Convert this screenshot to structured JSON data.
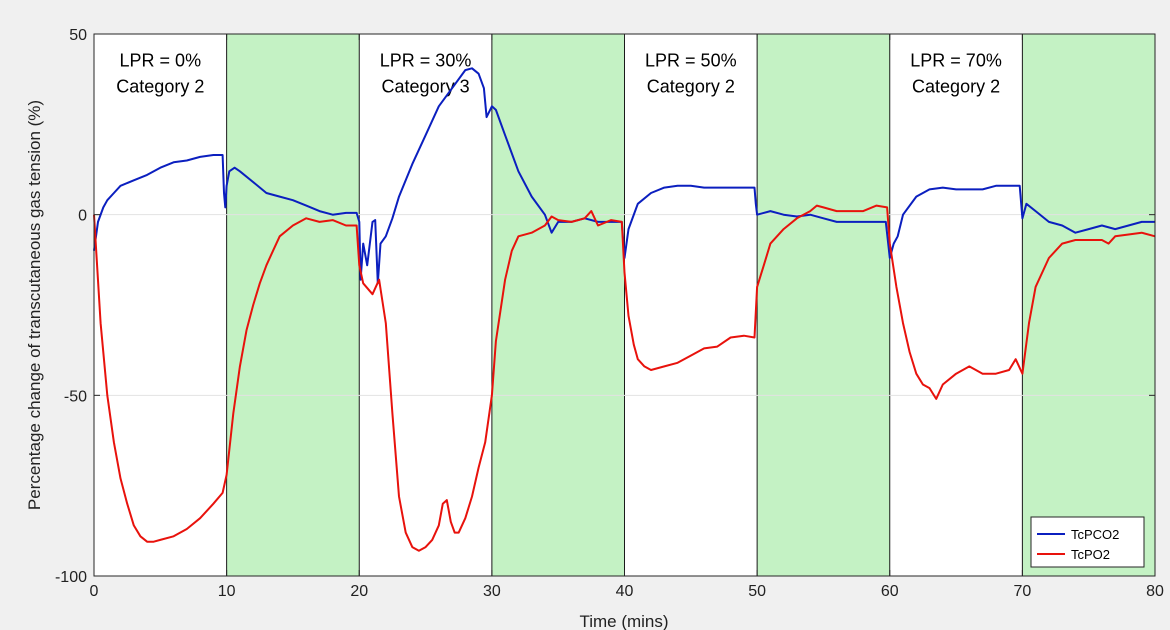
{
  "chart_data": {
    "type": "line",
    "xlabel": "Time (mins)",
    "ylabel": "Percentage change of transcutaneous gas tension (%)",
    "xlim": [
      0,
      80
    ],
    "ylim": [
      -100,
      50
    ],
    "x_ticks": [
      0,
      10,
      20,
      30,
      40,
      50,
      60,
      70,
      80
    ],
    "y_ticks": [
      -100,
      -50,
      0,
      50
    ],
    "grid": "horizontal",
    "legend": "bottom-right",
    "shaded_intervals": [
      [
        10,
        20
      ],
      [
        30,
        40
      ],
      [
        50,
        60
      ],
      [
        70,
        80
      ]
    ],
    "shade_color": "#c4f2c4",
    "annotations": [
      {
        "lines": [
          "LPR = 0%",
          "Category 2"
        ],
        "x": 5,
        "y": 41
      },
      {
        "lines": [
          "LPR = 30%",
          "Category 3"
        ],
        "x": 25,
        "y": 41
      },
      {
        "lines": [
          "LPR = 50%",
          "Category 2"
        ],
        "x": 45,
        "y": 41
      },
      {
        "lines": [
          "LPR = 70%",
          "Category 2"
        ],
        "x": 65,
        "y": 41
      }
    ],
    "series": [
      {
        "name": "TcPCO2",
        "color": "#0b1fbf",
        "points": [
          [
            0,
            -10
          ],
          [
            0.3,
            -2
          ],
          [
            0.7,
            2
          ],
          [
            1,
            4
          ],
          [
            1.5,
            6
          ],
          [
            2,
            8
          ],
          [
            3,
            9.5
          ],
          [
            4,
            11
          ],
          [
            5,
            13
          ],
          [
            6,
            14.5
          ],
          [
            7,
            15
          ],
          [
            8,
            16
          ],
          [
            9,
            16.5
          ],
          [
            9.7,
            16.5
          ],
          [
            9.8,
            6
          ],
          [
            9.9,
            2
          ],
          [
            10,
            8
          ],
          [
            10.2,
            12
          ],
          [
            10.6,
            13
          ],
          [
            11,
            12
          ],
          [
            12,
            9
          ],
          [
            13,
            6
          ],
          [
            14,
            5
          ],
          [
            15,
            4
          ],
          [
            16,
            2.5
          ],
          [
            17,
            1
          ],
          [
            18,
            0
          ],
          [
            19,
            0.5
          ],
          [
            19.8,
            0.5
          ],
          [
            20,
            -2
          ],
          [
            20.1,
            -18
          ],
          [
            20.3,
            -8
          ],
          [
            20.6,
            -14
          ],
          [
            21,
            -2
          ],
          [
            21.2,
            -1.5
          ],
          [
            21.4,
            -19
          ],
          [
            21.6,
            -8
          ],
          [
            22,
            -6
          ],
          [
            22.5,
            -1
          ],
          [
            23,
            5
          ],
          [
            24,
            14
          ],
          [
            25,
            22
          ],
          [
            26,
            30
          ],
          [
            27,
            35
          ],
          [
            28,
            40
          ],
          [
            28.5,
            40.5
          ],
          [
            29,
            39
          ],
          [
            29.4,
            35
          ],
          [
            29.6,
            27
          ],
          [
            30,
            30
          ],
          [
            30.3,
            29
          ],
          [
            31,
            22
          ],
          [
            32,
            12
          ],
          [
            33,
            5
          ],
          [
            34,
            0
          ],
          [
            34.5,
            -5
          ],
          [
            35,
            -2
          ],
          [
            36,
            -2
          ],
          [
            37,
            -1
          ],
          [
            38,
            -2
          ],
          [
            39,
            -2
          ],
          [
            39.8,
            -2
          ],
          [
            40,
            -12
          ],
          [
            40.3,
            -4
          ],
          [
            41,
            3
          ],
          [
            42,
            6
          ],
          [
            43,
            7.5
          ],
          [
            44,
            8
          ],
          [
            45,
            8
          ],
          [
            46,
            7.5
          ],
          [
            47,
            7.5
          ],
          [
            48,
            7.5
          ],
          [
            49,
            7.5
          ],
          [
            49.8,
            7.5
          ],
          [
            49.9,
            3
          ],
          [
            50,
            0
          ],
          [
            51,
            1
          ],
          [
            52,
            0
          ],
          [
            53,
            -0.5
          ],
          [
            54,
            0
          ],
          [
            55,
            -1
          ],
          [
            56,
            -2
          ],
          [
            57,
            -2
          ],
          [
            58,
            -2
          ],
          [
            59,
            -2
          ],
          [
            59.7,
            -2
          ],
          [
            60,
            -12
          ],
          [
            60.3,
            -8
          ],
          [
            60.6,
            -6
          ],
          [
            61,
            0
          ],
          [
            62,
            5
          ],
          [
            63,
            7
          ],
          [
            64,
            7.5
          ],
          [
            65,
            7
          ],
          [
            66,
            7
          ],
          [
            67,
            7
          ],
          [
            68,
            8
          ],
          [
            69,
            8
          ],
          [
            69.8,
            8
          ],
          [
            70,
            -1
          ],
          [
            70.3,
            3
          ],
          [
            71,
            1
          ],
          [
            72,
            -2
          ],
          [
            73,
            -3
          ],
          [
            74,
            -5
          ],
          [
            75,
            -4
          ],
          [
            76,
            -3
          ],
          [
            77,
            -4
          ],
          [
            78,
            -3
          ],
          [
            79,
            -2
          ],
          [
            80,
            -2
          ]
        ]
      },
      {
        "name": "TcPO2",
        "color": "#e8120c",
        "points": [
          [
            0,
            0
          ],
          [
            0.5,
            -30
          ],
          [
            1,
            -50
          ],
          [
            1.5,
            -63
          ],
          [
            2,
            -73
          ],
          [
            2.5,
            -80
          ],
          [
            3,
            -86
          ],
          [
            3.5,
            -89
          ],
          [
            4,
            -90.5
          ],
          [
            4.5,
            -90.5
          ],
          [
            5,
            -90
          ],
          [
            6,
            -89
          ],
          [
            7,
            -87
          ],
          [
            8,
            -84
          ],
          [
            9,
            -80
          ],
          [
            9.7,
            -77
          ],
          [
            10,
            -72
          ],
          [
            10.5,
            -55
          ],
          [
            11,
            -42
          ],
          [
            11.5,
            -32
          ],
          [
            12,
            -25
          ],
          [
            12.5,
            -19
          ],
          [
            13,
            -14
          ],
          [
            13.5,
            -10
          ],
          [
            14,
            -6
          ],
          [
            15,
            -3
          ],
          [
            16,
            -1
          ],
          [
            17,
            -2
          ],
          [
            18,
            -1.5
          ],
          [
            19,
            -3
          ],
          [
            19.8,
            -3
          ],
          [
            20,
            -14
          ],
          [
            20.3,
            -19
          ],
          [
            21,
            -22
          ],
          [
            21.5,
            -18
          ],
          [
            22,
            -30
          ],
          [
            22.5,
            -55
          ],
          [
            23,
            -78
          ],
          [
            23.5,
            -88
          ],
          [
            24,
            -92
          ],
          [
            24.5,
            -93
          ],
          [
            25,
            -92
          ],
          [
            25.5,
            -90
          ],
          [
            26,
            -86
          ],
          [
            26.3,
            -80
          ],
          [
            26.6,
            -79
          ],
          [
            26.9,
            -85
          ],
          [
            27.2,
            -88
          ],
          [
            27.5,
            -88
          ],
          [
            28,
            -84
          ],
          [
            28.5,
            -78
          ],
          [
            29,
            -70
          ],
          [
            29.5,
            -63
          ],
          [
            30,
            -50
          ],
          [
            30.3,
            -35
          ],
          [
            31,
            -18
          ],
          [
            31.5,
            -10
          ],
          [
            32,
            -6
          ],
          [
            33,
            -5
          ],
          [
            34,
            -3
          ],
          [
            34.5,
            -0.5
          ],
          [
            35,
            -1.5
          ],
          [
            36,
            -2
          ],
          [
            37,
            -1
          ],
          [
            37.5,
            1
          ],
          [
            38,
            -3
          ],
          [
            39,
            -1.5
          ],
          [
            39.8,
            -2
          ],
          [
            40,
            -16
          ],
          [
            40.3,
            -28
          ],
          [
            40.7,
            -36
          ],
          [
            41,
            -40
          ],
          [
            41.5,
            -42
          ],
          [
            42,
            -43
          ],
          [
            43,
            -42
          ],
          [
            44,
            -41
          ],
          [
            45,
            -39
          ],
          [
            46,
            -37
          ],
          [
            47,
            -36.5
          ],
          [
            48,
            -34
          ],
          [
            49,
            -33.5
          ],
          [
            49.8,
            -34
          ],
          [
            50,
            -20
          ],
          [
            50.5,
            -14
          ],
          [
            51,
            -8
          ],
          [
            52,
            -4
          ],
          [
            53,
            -1
          ],
          [
            54,
            1
          ],
          [
            54.5,
            2.5
          ],
          [
            55,
            2
          ],
          [
            56,
            1
          ],
          [
            57,
            1
          ],
          [
            58,
            1
          ],
          [
            59,
            2.5
          ],
          [
            59.8,
            2
          ],
          [
            60,
            -8
          ],
          [
            60.5,
            -20
          ],
          [
            61,
            -30
          ],
          [
            61.5,
            -38
          ],
          [
            62,
            -44
          ],
          [
            62.5,
            -47
          ],
          [
            63,
            -48
          ],
          [
            63.5,
            -51
          ],
          [
            64,
            -47
          ],
          [
            65,
            -44
          ],
          [
            66,
            -42
          ],
          [
            67,
            -44
          ],
          [
            68,
            -44
          ],
          [
            69,
            -43
          ],
          [
            69.5,
            -40
          ],
          [
            70,
            -44
          ],
          [
            70.5,
            -30
          ],
          [
            71,
            -20
          ],
          [
            72,
            -12
          ],
          [
            73,
            -8
          ],
          [
            74,
            -7
          ],
          [
            75,
            -7
          ],
          [
            76,
            -7
          ],
          [
            76.5,
            -8
          ],
          [
            77,
            -6
          ],
          [
            78,
            -5.5
          ],
          [
            79,
            -5
          ],
          [
            80,
            -6
          ]
        ]
      }
    ]
  }
}
